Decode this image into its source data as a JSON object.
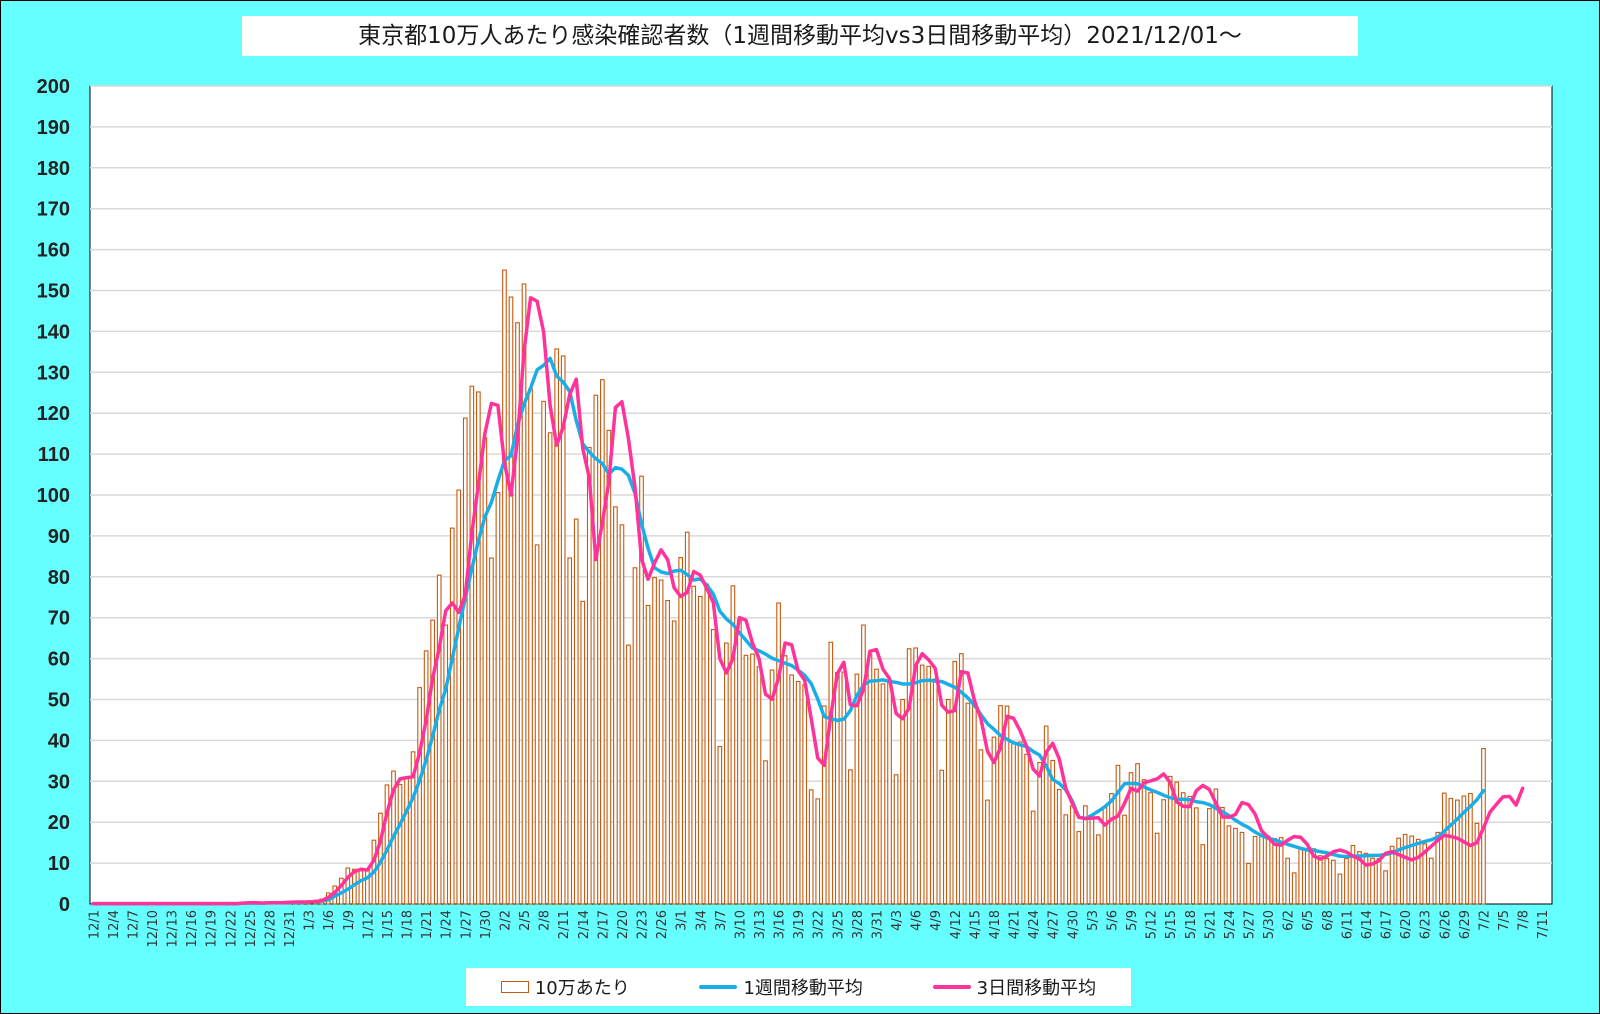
{
  "chart_data": {
    "type": "bar+line",
    "title": "東京都10万人あたり感染確認者数（1週間移動平均vs3日間移動平均）2021/12/01～",
    "ylim": [
      0,
      200
    ],
    "ytick_step": 10,
    "yticks": [
      "0",
      "10",
      "20",
      "30",
      "40",
      "50",
      "60",
      "70",
      "80",
      "90",
      "100",
      "110",
      "120",
      "130",
      "140",
      "150",
      "160",
      "170",
      "180",
      "190",
      "200"
    ],
    "x_start": "12/1",
    "x_label_every": 3,
    "x_tick_labels": [
      "12/1",
      "12/4",
      "12/7",
      "12/10",
      "12/13",
      "12/16",
      "12/19",
      "12/22",
      "12/25",
      "12/28",
      "12/31",
      "1/3",
      "1/6",
      "1/9",
      "1/12",
      "1/15",
      "1/18",
      "1/21",
      "1/24",
      "1/27",
      "1/30",
      "2/2",
      "2/5",
      "2/8",
      "2/11",
      "2/14",
      "2/17",
      "2/20",
      "2/23",
      "2/26",
      "3/1",
      "3/4",
      "3/7",
      "3/10",
      "3/13",
      "3/16",
      "3/19",
      "3/22",
      "3/25",
      "3/28",
      "3/31",
      "4/3",
      "4/6",
      "4/9",
      "4/12",
      "4/15",
      "4/18",
      "4/21",
      "4/24",
      "4/27",
      "4/30",
      "5/3",
      "5/6",
      "5/9",
      "5/12",
      "5/15",
      "5/18",
      "5/21",
      "5/24",
      "5/27",
      "5/30",
      "6/2",
      "6/5",
      "6/8",
      "6/11",
      "6/14",
      "6/17",
      "6/20",
      "6/23",
      "6/26",
      "6/29",
      "7/2",
      "7/5",
      "7/8",
      "7/11"
    ],
    "n_days": 224,
    "grid": true,
    "legend_position": "bottom",
    "series": [
      {
        "name": "10万あたり",
        "kind": "bar",
        "color": "#c55a11",
        "values": [
          0.1,
          0.1,
          0.1,
          0.1,
          0.1,
          0.1,
          0.1,
          0.1,
          0.1,
          0.1,
          0.1,
          0.1,
          0.1,
          0.1,
          0.1,
          0.1,
          0.1,
          0.1,
          0.1,
          0.1,
          0.1,
          0.1,
          0.2,
          0.3,
          0.3,
          0.2,
          0.2,
          0.3,
          0.3,
          0.4,
          0.5,
          0.5,
          0.4,
          0.5,
          0.8,
          1.2,
          2.7,
          4.4,
          6.3,
          8.8,
          8.5,
          8.1,
          8.3,
          15.6,
          22.2,
          29.1,
          32.5,
          29.2,
          31.0,
          37.2,
          52.9,
          61.9,
          69.4,
          80.4,
          68.2,
          91.9,
          101.2,
          118.8,
          126.6,
          125.2,
          114.0,
          84.6,
          100.6,
          155.0,
          148.4,
          142.1,
          151.6,
          125.9,
          87.8,
          122.9,
          115.2,
          135.7,
          134.0,
          84.6,
          94.1,
          74.0,
          111.6,
          124.4,
          128.2,
          115.8,
          97.1,
          92.7,
          63.3,
          82.2,
          104.6,
          73.0,
          79.8,
          79.2,
          74.2,
          69.2,
          84.7,
          90.9,
          77.7,
          75.2,
          78.2,
          67.1,
          38.5,
          63.8,
          77.8,
          69.5,
          60.8,
          61.1,
          58.0,
          35.0,
          57.2,
          73.6,
          60.7,
          56.0,
          54.4,
          53.6,
          27.9,
          25.7,
          48.4,
          64.0,
          56.6,
          56.7,
          32.8,
          56.2,
          68.2,
          61.1,
          57.4,
          53.8,
          54.3,
          31.6,
          50.0,
          62.4,
          62.6,
          58.4,
          58.1,
          55.0,
          32.7,
          50.0,
          59.3,
          61.2,
          49.1,
          49.0,
          37.7,
          25.4,
          40.8,
          48.5,
          48.4,
          39.3,
          39.6,
          36.6,
          22.7,
          34.6,
          43.5,
          35.1,
          28.0,
          21.8,
          24.0,
          17.7,
          24.0,
          21.2,
          16.9,
          23.8,
          27.0,
          33.9,
          21.7,
          32.1,
          34.3,
          30.4,
          27.2,
          17.3,
          25.5,
          31.2,
          29.8,
          27.2,
          26.3,
          23.5,
          14.5,
          23.3,
          28.1,
          23.6,
          19.1,
          18.5,
          17.5,
          9.9,
          16.5,
          16.7,
          16.6,
          16.0,
          16.2,
          11.2,
          7.6,
          13.4,
          13.6,
          13.5,
          11.8,
          11.1,
          10.7,
          7.3,
          11.1,
          14.3,
          12.8,
          12.4,
          11.2,
          11.1,
          8.1,
          14.1,
          16.1,
          17.0,
          16.6,
          15.8,
          14.7,
          11.2,
          17.5,
          27.1,
          25.8,
          25.4,
          26.4,
          27.0,
          19.7,
          38.0
        ]
      },
      {
        "name": "1週間移動平均",
        "kind": "line",
        "color": "#1aaee8",
        "values": [
          0.1,
          0.1,
          0.1,
          0.1,
          0.1,
          0.1,
          0.1,
          0.1,
          0.1,
          0.1,
          0.1,
          0.1,
          0.1,
          0.1,
          0.1,
          0.1,
          0.1,
          0.1,
          0.1,
          0.1,
          0.1,
          0.1,
          0.1,
          0.2,
          0.2,
          0.2,
          0.2,
          0.3,
          0.3,
          0.3,
          0.4,
          0.4,
          0.4,
          0.5,
          0.6,
          0.7,
          1.0,
          1.9,
          2.7,
          3.6,
          4.7,
          5.7,
          6.4,
          7.8,
          10.2,
          13.2,
          16.5,
          19.5,
          22.7,
          26.0,
          30.2,
          35.2,
          41.0,
          47.4,
          52.5,
          60.0,
          67.5,
          74.9,
          81.9,
          88.8,
          94.6,
          98.2,
          103.5,
          108.4,
          109.6,
          117.0,
          122.2,
          126.1,
          130.6,
          131.7,
          133.4,
          129.1,
          127.6,
          125.3,
          118.2,
          112.5,
          110.5,
          108.9,
          107.7,
          105.1,
          106.7,
          106.3,
          104.8,
          100.4,
          93.0,
          87.0,
          82.2,
          81.2,
          80.8,
          81.4,
          81.6,
          80.5,
          79.2,
          79.5,
          78.0,
          75.8,
          71.6,
          69.7,
          68.4,
          66.3,
          64.5,
          62.6,
          61.9,
          61.1,
          60.1,
          59.5,
          58.9,
          58.3,
          57.2,
          55.9,
          53.9,
          50.1,
          45.8,
          45.3,
          44.9,
          45.2,
          47.3,
          51.0,
          53.5,
          54.5,
          54.6,
          54.8,
          54.4,
          54.2,
          53.8,
          53.8,
          54.1,
          54.6,
          54.7,
          54.5,
          54.4,
          53.7,
          53.0,
          51.8,
          50.4,
          48.6,
          46.3,
          44.1,
          42.7,
          41.2,
          40.3,
          39.4,
          38.9,
          38.5,
          37.3,
          36.4,
          33.8,
          30.4,
          29.5,
          27.9,
          25.2,
          21.2,
          20.9,
          21.7,
          22.7,
          23.8,
          25.2,
          27.3,
          29.4,
          29.5,
          29.4,
          28.6,
          27.9,
          27.3,
          26.6,
          26.0,
          25.6,
          25.6,
          25.5,
          25.0,
          24.8,
          24.3,
          23.4,
          22.6,
          21.6,
          20.5,
          19.5,
          18.7,
          17.6,
          16.7,
          16.1,
          15.7,
          15.1,
          14.6,
          14.1,
          13.6,
          13.2,
          13.1,
          12.8,
          12.5,
          12.1,
          11.7,
          11.6,
          11.7,
          11.7,
          11.8,
          11.9,
          11.9,
          12.1,
          12.5,
          13.2,
          13.8,
          14.3,
          14.8,
          15.3,
          15.7,
          16.4,
          17.8,
          19.3,
          20.8,
          22.4,
          23.9,
          25.5,
          27.7
        ]
      },
      {
        "name": "3日間移動平均",
        "kind": "line",
        "color": "#ff3399",
        "values": [
          0.1,
          0.1,
          0.1,
          0.1,
          0.1,
          0.1,
          0.1,
          0.1,
          0.1,
          0.1,
          0.1,
          0.1,
          0.1,
          0.1,
          0.1,
          0.1,
          0.1,
          0.1,
          0.1,
          0.1,
          0.1,
          0.1,
          0.1,
          0.2,
          0.3,
          0.3,
          0.2,
          0.3,
          0.3,
          0.3,
          0.4,
          0.5,
          0.5,
          0.5,
          0.6,
          0.8,
          1.6,
          2.8,
          4.5,
          6.5,
          7.9,
          8.5,
          8.3,
          10.7,
          15.4,
          22.3,
          27.9,
          30.6,
          30.9,
          31.1,
          37.0,
          44.9,
          55.2,
          62.5,
          71.7,
          73.6,
          71.3,
          75.6,
          90.7,
          102.4,
          115.0,
          122.4,
          121.9,
          107.9,
          100.0,
          113.8,
          135.2,
          148.2,
          147.4,
          139.9,
          121.8,
          112.2,
          116.6,
          124.6,
          128.3,
          111.4,
          104.2,
          84.2,
          93.2,
          103.4,
          121.4,
          122.8,
          113.7,
          101.9,
          84.4,
          79.4,
          83.4,
          86.6,
          84.2,
          77.3,
          75.2,
          76.2,
          81.3,
          80.4,
          77.1,
          73.7,
          60.0,
          56.5,
          60.0,
          70.0,
          69.4,
          63.8,
          60.0,
          51.3,
          50.1,
          55.3,
          63.8,
          63.4,
          57.0,
          54.7,
          45.3,
          35.7,
          33.9,
          46.0,
          56.3,
          59.1,
          48.7,
          48.5,
          52.4,
          61.8,
          62.2,
          57.4,
          55.1,
          46.6,
          45.3,
          47.9,
          58.3,
          61.2,
          59.7,
          57.6,
          48.6,
          46.9,
          47.3,
          56.8,
          56.5,
          49.8,
          45.3,
          37.4,
          34.6,
          38.2,
          45.9,
          45.4,
          42.4,
          38.5,
          33.0,
          31.3,
          37.1,
          39.3,
          35.5,
          28.3,
          24.6,
          21.2,
          20.9,
          21.0,
          21.1,
          19.3,
          20.7,
          21.5,
          24.6,
          28.3,
          27.6,
          29.7,
          30.1,
          30.6,
          31.8,
          29.7,
          25.0,
          23.9,
          23.8,
          27.7,
          29.0,
          28.0,
          24.7,
          21.3,
          21.2,
          21.9,
          24.8,
          24.3,
          22.0,
          17.9,
          16.3,
          14.6,
          14.4,
          15.6,
          16.5,
          16.3,
          14.6,
          11.7,
          11.0,
          11.7,
          12.8,
          13.2,
          12.7,
          11.7,
          11.0,
          9.5,
          9.8,
          10.6,
          12.4,
          12.8,
          12.1,
          11.4,
          10.8,
          11.4,
          12.7,
          14.1,
          15.6,
          16.8,
          16.5,
          16.1,
          15.2,
          14.3,
          15.0,
          18.6,
          22.5,
          24.4,
          26.2,
          26.3,
          24.2,
          28.3
        ]
      }
    ]
  }
}
